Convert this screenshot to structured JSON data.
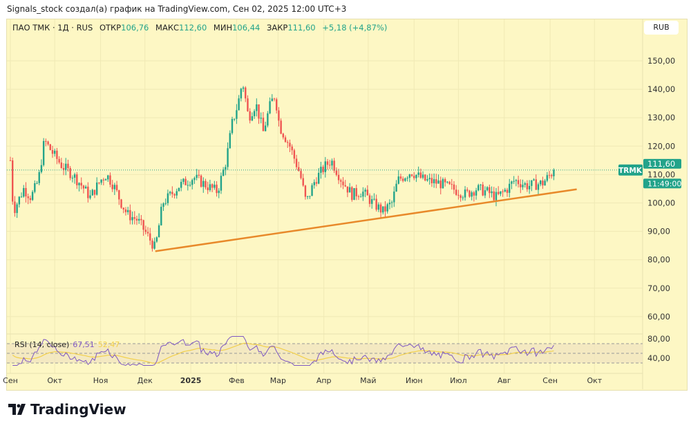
{
  "caption": "Signals_stock создал(а) график на TradingView.com, Сен 02, 2025 12:00 UTC+3",
  "legend": {
    "symbol": "ПАО ТМК · 1Д · RUS",
    "open_label": "ОТКР",
    "open": "106,76",
    "high_label": "МАКС",
    "high": "112,60",
    "low_label": "МИН",
    "low": "106,44",
    "close_label": "ЗАКР",
    "close": "111,60",
    "change": "+5,18 (+4,87%)"
  },
  "currency": "RUB",
  "price_tag": {
    "ticker": "TRMK",
    "price": "111,60",
    "time": "11:49:00"
  },
  "logo": "TradingView",
  "colors": {
    "up": "#22a38a",
    "down": "#ef5350",
    "trend": "#e8892a",
    "rsi": "#7e57c2",
    "rsi_ma": "#f2d04b",
    "bg": "#fdf7c4"
  },
  "chart_data": {
    "type": "candlestick",
    "y_ticks": [
      "150,00",
      "140,00",
      "130,00",
      "120,00",
      "110,00",
      "100,00",
      "90,00",
      "80,00",
      "70,00",
      "60,00"
    ],
    "y_tick_values": [
      150,
      140,
      130,
      120,
      110,
      100,
      90,
      80,
      70,
      60
    ],
    "ylim": [
      56,
      160
    ],
    "x_ticks": [
      "Сен",
      "Окт",
      "Ноя",
      "Дек",
      "2025",
      "Фев",
      "Мар",
      "Апр",
      "Май",
      "Июн",
      "Июл",
      "Авг",
      "Сен",
      "Окт"
    ],
    "x_tick_days": [
      0,
      30,
      61,
      91,
      122,
      153,
      181,
      212,
      242,
      273,
      303,
      334,
      365,
      395
    ],
    "close_path_day_price": [
      [
        0,
        115
      ],
      [
        2,
        97
      ],
      [
        9,
        105
      ],
      [
        14,
        102
      ],
      [
        19,
        108
      ],
      [
        23,
        122
      ],
      [
        28,
        118
      ],
      [
        35,
        113
      ],
      [
        42,
        110
      ],
      [
        47,
        107
      ],
      [
        54,
        102
      ],
      [
        61,
        108
      ],
      [
        65,
        110
      ],
      [
        70,
        106
      ],
      [
        75,
        100
      ],
      [
        79,
        96
      ],
      [
        86,
        94
      ],
      [
        91,
        90
      ],
      [
        98,
        84
      ],
      [
        103,
        100
      ],
      [
        107,
        102
      ],
      [
        114,
        106
      ],
      [
        124,
        109
      ],
      [
        133,
        106
      ],
      [
        140,
        104
      ],
      [
        146,
        115
      ],
      [
        150,
        128
      ],
      [
        154,
        135
      ],
      [
        157,
        143
      ],
      [
        161,
        130
      ],
      [
        166,
        135
      ],
      [
        171,
        125
      ],
      [
        176,
        135
      ],
      [
        179,
        138
      ],
      [
        182,
        127
      ],
      [
        189,
        120
      ],
      [
        196,
        110
      ],
      [
        200,
        100
      ],
      [
        206,
        108
      ],
      [
        213,
        113
      ],
      [
        217,
        115
      ],
      [
        224,
        108
      ],
      [
        231,
        103
      ],
      [
        238,
        104
      ],
      [
        245,
        100
      ],
      [
        252,
        97
      ],
      [
        258,
        100
      ],
      [
        262,
        108
      ],
      [
        271,
        111
      ],
      [
        280,
        108
      ],
      [
        290,
        107
      ],
      [
        299,
        105
      ],
      [
        308,
        103
      ],
      [
        315,
        105
      ],
      [
        322,
        104
      ],
      [
        329,
        102
      ],
      [
        336,
        105
      ],
      [
        341,
        108
      ],
      [
        350,
        106
      ],
      [
        360,
        107
      ],
      [
        368,
        111.6
      ]
    ],
    "trendline": [
      [
        98,
        83
      ],
      [
        383,
        104.8
      ]
    ],
    "last_price": 111.6,
    "rsi": {
      "label": "RSI (14, close)",
      "value": "67,51",
      "ma_value": "52,47",
      "levels": [
        "80,00",
        "40,00"
      ],
      "level_values": [
        80,
        40
      ],
      "bands": [
        70,
        50,
        30
      ]
    }
  }
}
